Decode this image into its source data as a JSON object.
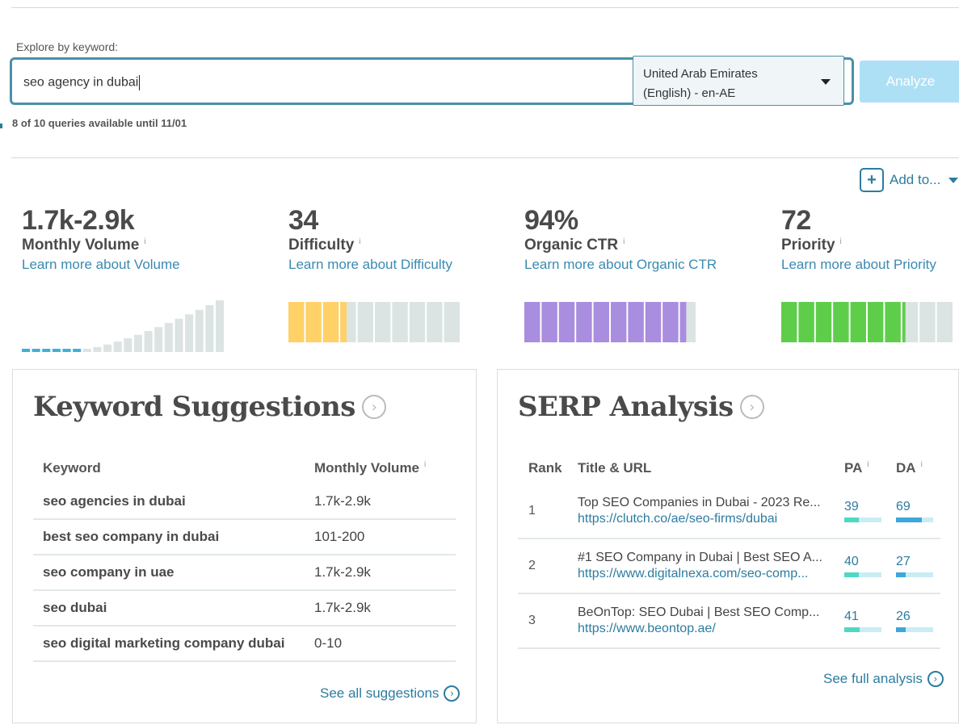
{
  "explore": {
    "label": "Explore by keyword:",
    "query": "seo agency in dubai",
    "locale_line1": "United Arab Emirates",
    "locale_line2": "(English) - en-AE",
    "analyze_label": "Analyze",
    "queries_status": "8 of 10 queries available until 11/01"
  },
  "add_to_label": "Add to...",
  "metrics": [
    {
      "value": "1.7k-2.9k",
      "label": "Monthly Volume",
      "learn": "Learn more about Volume"
    },
    {
      "value": "34",
      "label": "Difficulty",
      "learn": "Learn more about Difficulty"
    },
    {
      "value": "94%",
      "label": "Organic CTR",
      "learn": "Learn more about Organic CTR"
    },
    {
      "value": "72",
      "label": "Priority",
      "learn": "Learn more about Priority"
    }
  ],
  "info_glyph": "i",
  "gauges": {
    "difficulty_fraction": 0.34,
    "ctr_fraction": 0.94,
    "priority_fraction": 0.72,
    "colors": {
      "difficulty": "#ffd166",
      "ctr": "#a98ddf",
      "priority": "#5ece4a",
      "empty": "#dce3e3",
      "volume_active": "#3fb0d8",
      "volume_inactive": "#dce3e3"
    }
  },
  "keyword_suggestions": {
    "title": "Keyword Suggestions",
    "col_keyword": "Keyword",
    "col_volume": "Monthly Volume",
    "rows": [
      {
        "keyword": "seo agencies in dubai",
        "volume": "1.7k-2.9k"
      },
      {
        "keyword": "best seo company in dubai",
        "volume": "101-200"
      },
      {
        "keyword": "seo company in uae",
        "volume": "1.7k-2.9k"
      },
      {
        "keyword": "seo dubai",
        "volume": "1.7k-2.9k"
      },
      {
        "keyword": "seo digital marketing company dubai",
        "volume": "0-10"
      }
    ],
    "see_all": "See all suggestions"
  },
  "serp": {
    "title": "SERP Analysis",
    "col_rank": "Rank",
    "col_title": "Title & URL",
    "col_pa": "PA",
    "col_da": "DA",
    "rows": [
      {
        "rank": "1",
        "title": "Top SEO Companies in Dubai - 2023 Re...",
        "url": "https://clutch.co/ae/seo-firms/dubai",
        "pa": "39",
        "da": "69"
      },
      {
        "rank": "2",
        "title": "#1 SEO Company in Dubai | Best SEO A...",
        "url": "https://www.digitalnexa.com/seo-comp...",
        "pa": "40",
        "da": "27"
      },
      {
        "rank": "3",
        "title": "BeOnTop: SEO Dubai | Best SEO Comp...",
        "url": "https://www.beontop.ae/",
        "pa": "41",
        "da": "26"
      }
    ],
    "see_full": "See full analysis"
  }
}
